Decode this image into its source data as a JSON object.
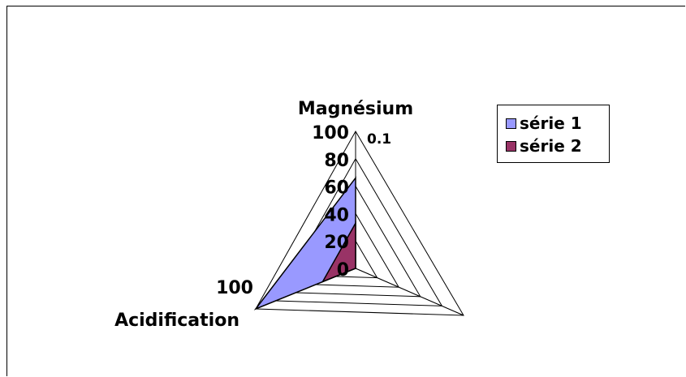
{
  "chart_data": {
    "type": "radar",
    "axes": [
      "Magnésium",
      "",
      "Acidification"
    ],
    "axis_tick_labels": {
      "Magnésium": [
        "0",
        "20",
        "40",
        "60",
        "80",
        "100"
      ],
      "Magnésium_extra": "0.1",
      "Acidification": "100"
    },
    "range": [
      0,
      100
    ],
    "grid_levels": 5,
    "series": [
      {
        "name": "série 1",
        "values": [
          66,
          0,
          100
        ],
        "color": "#9999ff"
      },
      {
        "name": "série 2",
        "values": [
          33,
          0,
          33
        ],
        "color": "#993366"
      }
    ],
    "legend_placement": "right"
  }
}
